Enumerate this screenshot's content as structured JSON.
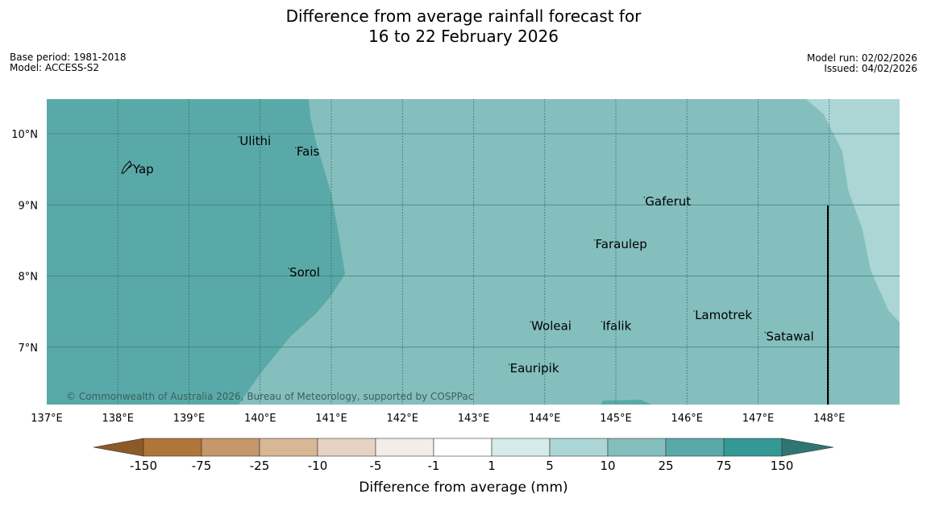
{
  "header": {
    "title_line1": "Difference from average rainfall forecast for",
    "title_line2": "16 to 22 February 2026",
    "base_period": "Base period: 1981-2018",
    "model": "Model: ACCESS-S2",
    "model_run": "Model run: 02/02/2026",
    "issued": "Issued: 04/02/2026"
  },
  "map": {
    "lon_range": [
      137,
      149
    ],
    "lat_range": [
      6.2,
      10.5
    ],
    "lon_labels": [
      "137°E",
      "138°E",
      "139°E",
      "140°E",
      "141°E",
      "142°E",
      "143°E",
      "144°E",
      "145°E",
      "146°E",
      "147°E",
      "148°E"
    ],
    "lat_labels": [
      "10°N",
      "9°N",
      "8°N",
      "7°N"
    ],
    "places": [
      {
        "name": "Yap",
        "lon": 138.2,
        "lat": 9.5
      },
      {
        "name": "Ulithi",
        "lon": 139.7,
        "lat": 9.9
      },
      {
        "name": "Fais",
        "lon": 140.5,
        "lat": 9.75
      },
      {
        "name": "Gaferut",
        "lon": 145.4,
        "lat": 9.05
      },
      {
        "name": "Faraulep",
        "lon": 144.7,
        "lat": 8.45
      },
      {
        "name": "Sorol",
        "lon": 140.4,
        "lat": 8.05
      },
      {
        "name": "Woleai",
        "lon": 143.8,
        "lat": 7.3
      },
      {
        "name": "Ifalik",
        "lon": 144.8,
        "lat": 7.3
      },
      {
        "name": "Lamotrek",
        "lon": 146.1,
        "lat": 7.45
      },
      {
        "name": "Satawal",
        "lon": 147.1,
        "lat": 7.15
      },
      {
        "name": "Eauripik",
        "lon": 143.5,
        "lat": 6.7
      }
    ],
    "copyright": "© Commonwealth of Australia 2026, Bureau of Meteorology, supported by COSPPac"
  },
  "colorbar": {
    "title": "Difference from average (mm)",
    "ticks": [
      "-150",
      "-75",
      "-25",
      "-10",
      "-5",
      "-1",
      "1",
      "5",
      "10",
      "25",
      "75",
      "150"
    ],
    "colors": [
      "#8c5a27",
      "#b07539",
      "#c6976a",
      "#d8b795",
      "#e6d3c4",
      "#f1eeea",
      "#ffffff",
      "#d6eaea",
      "#abd6d5",
      "#84bfbe",
      "#5aa9a9",
      "#349896",
      "#2f7673"
    ]
  }
}
